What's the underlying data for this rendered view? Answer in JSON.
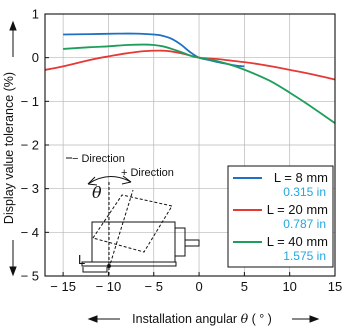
{
  "chart_data": {
    "type": "line",
    "title": "",
    "xlabel_pre": "Installation angular ",
    "xlabel_symbol": "θ",
    "xlabel_unit": " ( ° )",
    "ylabel": "Display value tolerance (%)",
    "xlim": [
      -17,
      15
    ],
    "ylim": [
      -5,
      1
    ],
    "xticks": [
      -15,
      -10,
      -5,
      0,
      5,
      10,
      15
    ],
    "xtick_labels": [
      "− 15",
      "− 10",
      "− 5",
      "0",
      "5",
      "10",
      "15"
    ],
    "yticks": [
      1,
      0,
      -1,
      -2,
      -3,
      -4,
      -5
    ],
    "ytick_labels": [
      "1",
      "0",
      "− 1",
      "− 2",
      "− 3",
      "− 4",
      "− 5"
    ],
    "grid": true,
    "legend_position": "lower-right",
    "series": [
      {
        "name": "L = 8 mm",
        "name_in": "0.315 in",
        "color": "#1f6fc4",
        "sub_color": "#22a7df",
        "x": [
          -15,
          -12,
          -9,
          -7,
          -5,
          -4,
          -3,
          -2,
          -1,
          0,
          1,
          2,
          3,
          4,
          5
        ],
        "y": [
          0.53,
          0.54,
          0.55,
          0.55,
          0.53,
          0.5,
          0.43,
          0.3,
          0.13,
          0,
          -0.05,
          -0.1,
          -0.14,
          -0.18,
          -0.2
        ]
      },
      {
        "name": "L = 20 mm",
        "name_in": "0.787 in",
        "color": "#e53935",
        "sub_color": "#22a7df",
        "x": [
          -17,
          -15,
          -12,
          -10,
          -8,
          -6,
          -4,
          -3,
          -2,
          -1,
          0,
          2,
          4,
          6,
          8,
          10,
          12,
          15
        ],
        "y": [
          -0.28,
          -0.2,
          -0.05,
          0.03,
          0.1,
          0.15,
          0.16,
          0.14,
          0.1,
          0.05,
          0,
          -0.03,
          -0.08,
          -0.13,
          -0.2,
          -0.28,
          -0.36,
          -0.5
        ]
      },
      {
        "name": "L = 40 mm",
        "name_in": "1.575 in",
        "color": "#1e9e5a",
        "sub_color": "#22a7df",
        "x": [
          -15,
          -12,
          -10,
          -8,
          -6,
          -5,
          -4,
          -3,
          -2,
          -1,
          0,
          2,
          4,
          6,
          8,
          10,
          12,
          15
        ],
        "y": [
          0.2,
          0.24,
          0.26,
          0.29,
          0.3,
          0.29,
          0.26,
          0.2,
          0.13,
          0.05,
          0,
          -0.08,
          -0.2,
          -0.36,
          -0.55,
          -0.8,
          -1.07,
          -1.5
        ]
      }
    ],
    "diagram": {
      "minus_direction": "− Direction",
      "plus_direction": "+ Direction",
      "theta": "θ",
      "l_label": "L"
    }
  }
}
